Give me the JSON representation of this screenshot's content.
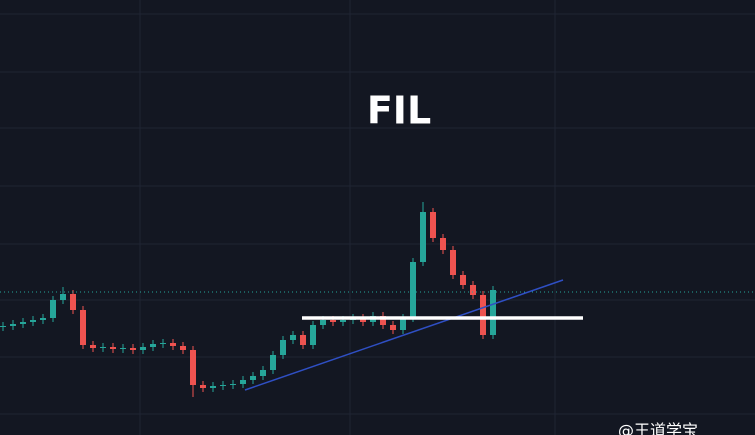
{
  "chart_data": {
    "type": "candlestick",
    "title": "FIL",
    "watermark": "@王道学宝",
    "up_color": "#26a69a",
    "down_color": "#ef5350",
    "ylim": [
      0,
      435
    ],
    "open": [
      108,
      109,
      111,
      113,
      115,
      117,
      135,
      141,
      125,
      90,
      87,
      88,
      86,
      87,
      85,
      88,
      91,
      92,
      89,
      85,
      50,
      47,
      49,
      50,
      51,
      55,
      59,
      65,
      80,
      95,
      100,
      90,
      110,
      115,
      113,
      115,
      117,
      113,
      119,
      110,
      105,
      117,
      173,
      223,
      197,
      185,
      160,
      150,
      140,
      100
    ],
    "close": [
      109,
      111,
      113,
      115,
      117,
      135,
      141,
      125,
      90,
      87,
      88,
      86,
      87,
      85,
      88,
      91,
      92,
      89,
      85,
      50,
      47,
      49,
      50,
      51,
      55,
      59,
      65,
      80,
      95,
      100,
      90,
      110,
      115,
      113,
      115,
      117,
      113,
      119,
      110,
      105,
      117,
      173,
      223,
      197,
      185,
      160,
      150,
      140,
      100,
      145
    ],
    "high": [
      113,
      115,
      117,
      119,
      121,
      139,
      148,
      145,
      129,
      94,
      92,
      92,
      91,
      91,
      92,
      95,
      96,
      96,
      93,
      89,
      54,
      53,
      54,
      55,
      59,
      63,
      69,
      84,
      99,
      104,
      104,
      114,
      119,
      119,
      119,
      121,
      121,
      123,
      123,
      114,
      121,
      177,
      233,
      227,
      201,
      189,
      164,
      154,
      144,
      149
    ],
    "low": [
      104,
      105,
      107,
      109,
      111,
      113,
      131,
      121,
      86,
      83,
      83,
      82,
      82,
      81,
      81,
      84,
      87,
      85,
      81,
      38,
      43,
      43,
      45,
      46,
      47,
      51,
      55,
      61,
      76,
      91,
      86,
      86,
      106,
      109,
      109,
      111,
      109,
      109,
      106,
      101,
      101,
      113,
      169,
      193,
      181,
      156,
      146,
      136,
      96,
      96
    ]
  }
}
